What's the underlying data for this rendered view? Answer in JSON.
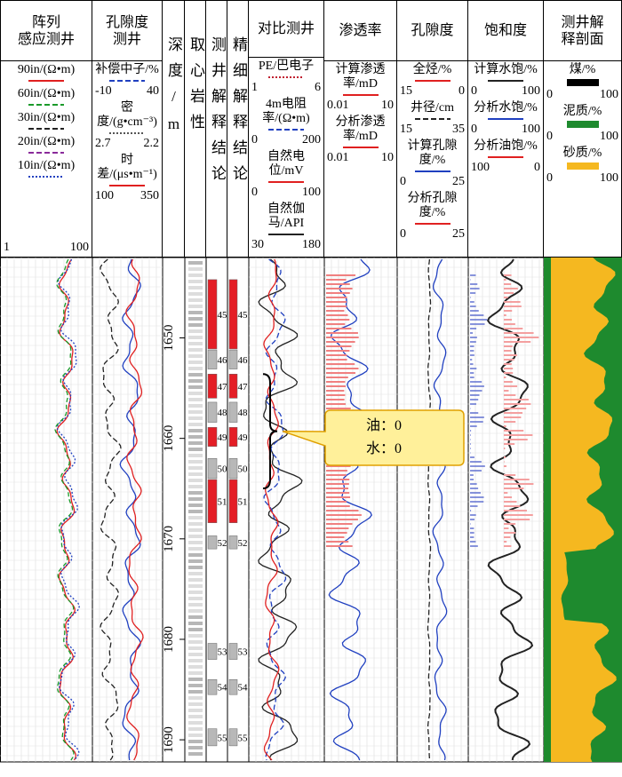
{
  "columns": [
    {
      "title": [
        "阵列",
        "感应测井"
      ],
      "legend": [
        {
          "label": "90in/(Ω•m)",
          "color": "#e02020",
          "dash": "solid"
        },
        {
          "label": "60in/(Ω•m)",
          "color": "#1a9a2a",
          "dash": "dash"
        },
        {
          "label": "30in/(Ω•m)",
          "color": "#222222",
          "dash": "dash"
        },
        {
          "label": "20in/(Ω•m)",
          "color": "#8a2a9a",
          "dash": "dash"
        },
        {
          "label": "10in/(Ω•m)",
          "color": "#2040c0",
          "dash": "dot"
        }
      ],
      "scale": [
        1,
        100
      ]
    },
    {
      "title": [
        "孔隙度",
        "测井"
      ],
      "legend": [
        {
          "label": "补偿中子/%",
          "color": "#2040c0",
          "dash": "dash",
          "scale": [
            -10,
            40
          ]
        },
        {
          "label": "密度/(g•cm⁻³)",
          "color": "#555555",
          "dash": "dot",
          "scale": [
            2.7,
            2.2
          ]
        },
        {
          "label": "时差/(μs•m⁻¹)",
          "color": "#e02020",
          "dash": "solid",
          "scale": [
            100,
            350
          ]
        }
      ]
    },
    {
      "title": [
        "深度/m"
      ],
      "vertical": true
    },
    {
      "title": [
        "取心岩性"
      ],
      "vertical": true
    },
    {
      "title": [
        "测井解释结论"
      ],
      "vertical": true
    },
    {
      "title": [
        "精细解释结论"
      ],
      "vertical": true
    },
    {
      "title": [
        "对比测井"
      ],
      "legend": [
        {
          "label": "PE/巴电子",
          "color": "#c02030",
          "dash": "dot",
          "scale": [
            1,
            6
          ]
        },
        {
          "label": "4m电阻率/(Ω•m)",
          "color": "#2040c0",
          "dash": "dash",
          "scale": [
            0,
            200
          ]
        },
        {
          "label": "自然电位/mV",
          "color": "#e02020",
          "dash": "solid",
          "scale": [
            0,
            100
          ]
        },
        {
          "label": "自然伽马/API",
          "color": "#222222",
          "dash": "solid",
          "scale": [
            30,
            180
          ]
        }
      ]
    },
    {
      "title": [
        "渗透率"
      ],
      "legend": [
        {
          "label": "计算渗透率/mD",
          "color": "#e02020",
          "dash": "solid",
          "scale": [
            0.01,
            10
          ]
        },
        {
          "label": "分析渗透率/mD",
          "color": "#e02020",
          "dash": "solid",
          "scale": [
            0.01,
            10
          ]
        }
      ]
    },
    {
      "title": [
        "孔隙度"
      ],
      "legend": [
        {
          "label": "全烃/%",
          "color": "#e02020",
          "dash": "solid",
          "scale": [
            15,
            0
          ]
        },
        {
          "label": "井径/cm",
          "color": "#222222",
          "dash": "dash",
          "scale": [
            15,
            35
          ]
        },
        {
          "label": "计算孔隙度/%",
          "color": "#2040c0",
          "dash": "solid",
          "scale": [
            0,
            25
          ]
        },
        {
          "label": "分析孔隙度/%",
          "color": "#e02020",
          "dash": "solid",
          "scale": [
            0,
            25
          ]
        }
      ]
    },
    {
      "title": [
        "饱和度"
      ],
      "legend": [
        {
          "label": "计算水饱/%",
          "color": "#222222",
          "dash": "solid",
          "scale": [
            0,
            100
          ]
        },
        {
          "label": "分析水饱/%",
          "color": "#2040c0",
          "dash": "solid",
          "scale": [
            0,
            100
          ]
        },
        {
          "label": "分析油饱/%",
          "color": "#e02020",
          "dash": "solid",
          "scale": [
            100,
            0
          ]
        }
      ]
    },
    {
      "title": [
        "测井解",
        "释剖面"
      ],
      "legend": [
        {
          "label": "煤/%",
          "color": "#000000",
          "dash": "box",
          "scale": [
            0,
            100
          ]
        },
        {
          "label": "泥质/%",
          "color": "#1e8a2e",
          "dash": "box",
          "scale": [
            0,
            100
          ]
        },
        {
          "label": "砂质/%",
          "color": "#f5b820",
          "dash": "box",
          "scale": [
            0,
            100
          ]
        }
      ]
    }
  ],
  "depth_range": [
    1642,
    1692.2
  ],
  "depth_ticks": [
    1650,
    1660,
    1670,
    1680,
    1690
  ],
  "layers": [
    {
      "label": "45",
      "top": 1644.2,
      "bottom": 1651.1,
      "color": "#e41e26"
    },
    {
      "label": "46",
      "top": 1651.2,
      "bottom": 1653.1,
      "color": "#b8b8b8"
    },
    {
      "label": "47",
      "top": 1653.6,
      "bottom": 1656.0,
      "color": "#e41e26"
    },
    {
      "label": "48",
      "top": 1656.4,
      "bottom": 1658.4,
      "color": "#b8b8b8"
    },
    {
      "label": "49",
      "top": 1658.9,
      "bottom": 1660.8,
      "color": "#e41e26"
    },
    {
      "label": "50",
      "top": 1662.0,
      "bottom": 1664.0,
      "color": "#b8b8b8"
    },
    {
      "label": "51",
      "top": 1664.1,
      "bottom": 1668.4,
      "color": "#e41e26"
    },
    {
      "label": "52",
      "top": 1669.7,
      "bottom": 1671.0,
      "color": "#b8b8b8"
    },
    {
      "label": "53",
      "top": 1680.4,
      "bottom": 1682.0,
      "color": "#b8b8b8"
    },
    {
      "label": "54",
      "top": 1684.0,
      "bottom": 1685.5,
      "color": "#b8b8b8"
    },
    {
      "label": "55",
      "top": 1688.9,
      "bottom": 1690.6,
      "color": "#b8b8b8"
    }
  ],
  "callout": {
    "lines": [
      "油：0",
      "水：0"
    ]
  }
}
